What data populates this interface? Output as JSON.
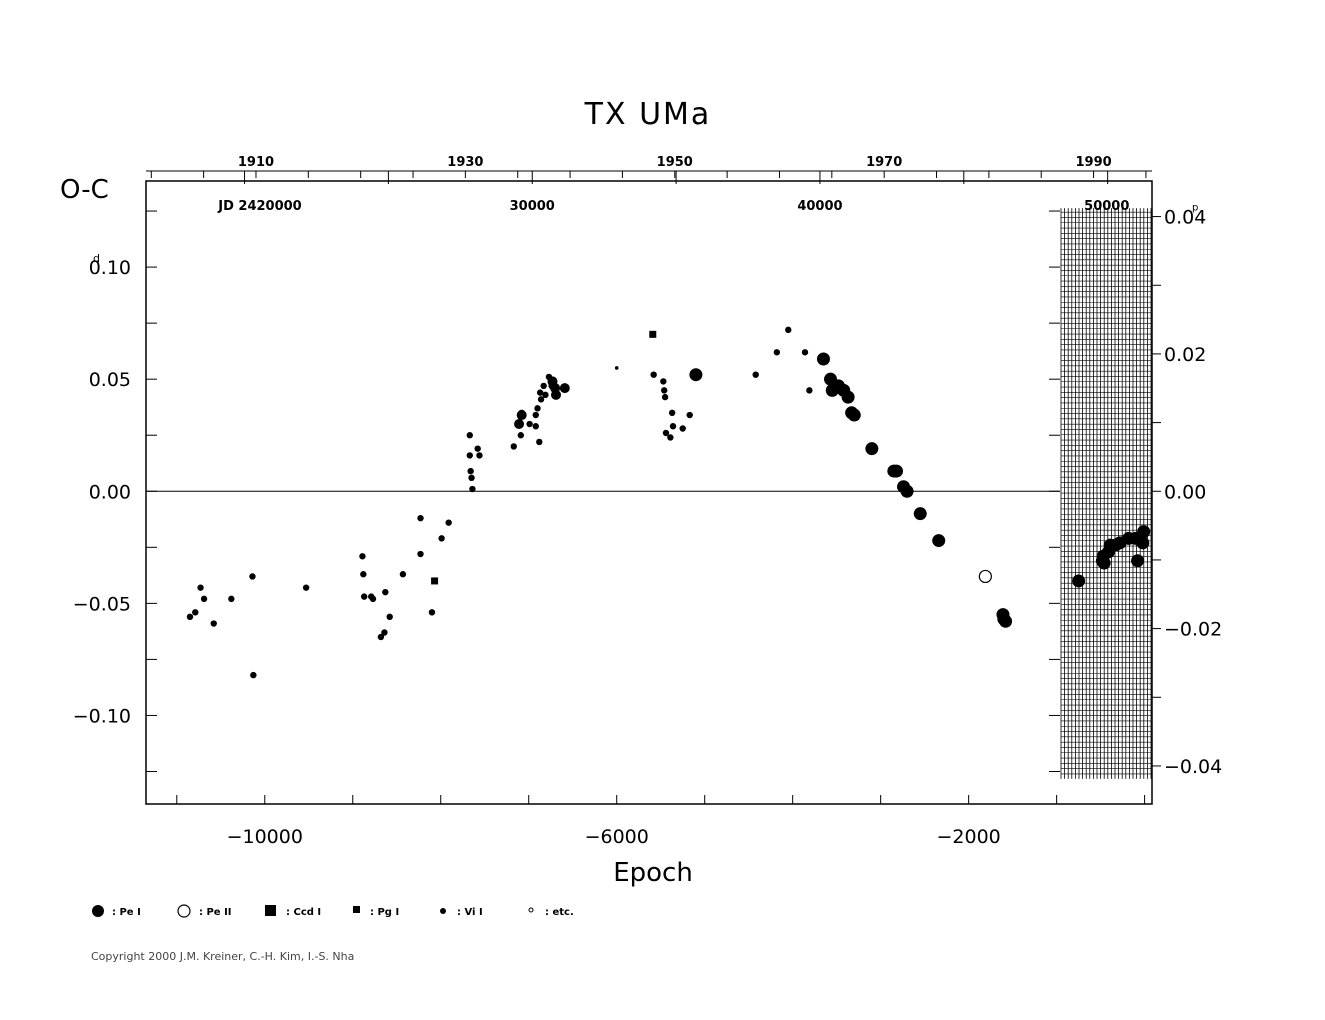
{
  "chart_data": {
    "type": "scatter",
    "title": "TX  UMa",
    "ylabel": "O-C",
    "xlabel": "Epoch",
    "xlim": [
      -11350,
      84
    ],
    "ylim": [
      -0.1395,
      0.1384
    ],
    "x_ticks": [
      "−10000",
      "−6000",
      "−2000"
    ],
    "x_tick_values": [
      -10000,
      -6000,
      -2000
    ],
    "y_ticks": [
      {
        "v": 0.1,
        "label": "0.10",
        "sup": "d"
      },
      {
        "v": 0.05,
        "label": "0.05",
        "sup": ""
      },
      {
        "v": 0.0,
        "label": "0.00",
        "sup": ""
      },
      {
        "v": -0.05,
        "label": "−0.05",
        "sup": ""
      },
      {
        "v": -0.1,
        "label": "−0.10",
        "sup": ""
      }
    ],
    "right_axis": {
      "unit": "phase",
      "period_days": 3.0632,
      "ticks": [
        {
          "v": 0.04,
          "label": "0.04",
          "sup": "p"
        },
        {
          "v": 0.02,
          "label": "0.02",
          "sup": ""
        },
        {
          "v": 0.0,
          "label": "0.00",
          "sup": ""
        },
        {
          "v": -0.02,
          "label": "−0.02",
          "sup": ""
        },
        {
          "v": -0.04,
          "label": "−0.04",
          "sup": ""
        }
      ]
    },
    "top_years": [
      "1910",
      "1930",
      "1950",
      "1970",
      "1990"
    ],
    "top_year_epochs": [
      -10100,
      -7720,
      -5340,
      -2960,
      -580
    ],
    "top_jd_prefix": "JD  2420000",
    "top_jd": [
      "30000",
      "40000",
      "50000"
    ],
    "top_jd_epochs": [
      -6960,
      -3690,
      -430
    ],
    "grid": false,
    "zero_line": true,
    "series": [
      {
        "name": ": Pe  I",
        "marker": "big-dot",
        "points": [
          [
            -5100,
            0.052
          ],
          [
            -3650,
            0.059
          ],
          [
            -3570,
            0.05
          ],
          [
            -3550,
            0.045
          ],
          [
            -3480,
            0.047
          ],
          [
            -3420,
            0.045
          ],
          [
            -3370,
            0.042
          ],
          [
            -3330,
            0.035
          ],
          [
            -3300,
            0.034
          ],
          [
            -3100,
            0.019
          ],
          [
            -2850,
            0.009
          ],
          [
            -2820,
            0.009
          ],
          [
            -2740,
            0.002
          ],
          [
            -2700,
            0.0
          ],
          [
            -2550,
            -0.01
          ],
          [
            -2340,
            -0.022
          ],
          [
            -1610,
            -0.055
          ],
          [
            -1600,
            -0.057
          ],
          [
            -1580,
            -0.058
          ],
          [
            -750,
            -0.04
          ],
          [
            -480,
            -0.031
          ],
          [
            -470,
            -0.029
          ],
          [
            -460,
            -0.032
          ],
          [
            -410,
            -0.027
          ],
          [
            -390,
            -0.024
          ],
          [
            -330,
            -0.024
          ],
          [
            -280,
            -0.023
          ],
          [
            -180,
            -0.021
          ],
          [
            -100,
            -0.021
          ],
          [
            -80,
            -0.031
          ],
          [
            -20,
            -0.023
          ],
          [
            -10,
            -0.018
          ]
        ]
      },
      {
        "name": ": Pe  II",
        "marker": "open-circle",
        "points": [
          [
            -1810,
            -0.038
          ]
        ]
      },
      {
        "name": ": Ccd  I",
        "marker": "square",
        "points": []
      },
      {
        "name": ": Pg  I",
        "marker": "small-square",
        "points": [
          [
            -5590,
            0.07
          ],
          [
            -8070,
            -0.04
          ]
        ]
      },
      {
        "name": ": Vi  I",
        "marker": "dot",
        "points": [
          [
            -10850,
            -0.056
          ],
          [
            -10790,
            -0.054
          ],
          [
            -10730,
            -0.043
          ],
          [
            -10690,
            -0.048
          ],
          [
            -10580,
            -0.059
          ],
          [
            -10380,
            -0.048
          ],
          [
            -10140,
            -0.038
          ],
          [
            -10130,
            -0.082
          ],
          [
            -9530,
            -0.043
          ],
          [
            -8890,
            -0.029
          ],
          [
            -8880,
            -0.037
          ],
          [
            -8870,
            -0.047
          ],
          [
            -8790,
            -0.047
          ],
          [
            -8770,
            -0.048
          ],
          [
            -8680,
            -0.065
          ],
          [
            -8640,
            -0.063
          ],
          [
            -8630,
            -0.045
          ],
          [
            -8580,
            -0.056
          ],
          [
            -8430,
            -0.037
          ],
          [
            -8230,
            -0.028
          ],
          [
            -8230,
            -0.012
          ],
          [
            -8100,
            -0.054
          ],
          [
            -7990,
            -0.021
          ],
          [
            -7910,
            -0.014
          ],
          [
            -7670,
            0.025
          ],
          [
            -7670,
            0.016
          ],
          [
            -7660,
            0.009
          ],
          [
            -7650,
            0.006
          ],
          [
            -7640,
            0.001
          ],
          [
            -7580,
            0.019
          ],
          [
            -7560,
            0.016
          ],
          [
            -7170,
            0.02
          ],
          [
            -7110,
            0.03
          ],
          [
            -7090,
            0.025
          ],
          [
            -7080,
            0.035
          ],
          [
            -6990,
            0.03
          ],
          [
            -6920,
            0.034
          ],
          [
            -6920,
            0.029
          ],
          [
            -6900,
            0.037
          ],
          [
            -6880,
            0.022
          ],
          [
            -6870,
            0.044
          ],
          [
            -6860,
            0.041
          ],
          [
            -6830,
            0.047
          ],
          [
            -6810,
            0.043
          ],
          [
            -6770,
            0.051
          ],
          [
            -6740,
            0.047
          ],
          [
            -5580,
            0.052
          ],
          [
            -5470,
            0.049
          ],
          [
            -5460,
            0.045
          ],
          [
            -5450,
            0.042
          ],
          [
            -5440,
            0.026
          ],
          [
            -5390,
            0.024
          ],
          [
            -5370,
            0.035
          ],
          [
            -5360,
            0.029
          ],
          [
            -5250,
            0.028
          ],
          [
            -5170,
            0.034
          ],
          [
            -4420,
            0.052
          ],
          [
            -4180,
            0.062
          ],
          [
            -4050,
            0.072
          ],
          [
            -3860,
            0.062
          ],
          [
            -3810,
            0.045
          ]
        ]
      },
      {
        "name": ": etc.",
        "marker": "tiny-dot",
        "points": [
          [
            -6000,
            0.055
          ]
        ]
      },
      {
        "name": "",
        "marker": "medium-dot",
        "points": [
          [
            -7110,
            0.03
          ],
          [
            -7080,
            0.034
          ],
          [
            -6730,
            0.049
          ],
          [
            -6690,
            0.043
          ],
          [
            -6590,
            0.046
          ],
          [
            -6700,
            0.046
          ]
        ]
      }
    ],
    "legend": ": Pe  I  ○ : Pe  II  ■ : Ccd  I  ■ : Pg  I  • : Vi  I  ∘ : etc.",
    "legend_placement": "bottom-left"
  },
  "footer": {
    "copyright": "Copyright 2000 J.M. Kreiner, C.-H. Kim, I.-S. Nha"
  }
}
